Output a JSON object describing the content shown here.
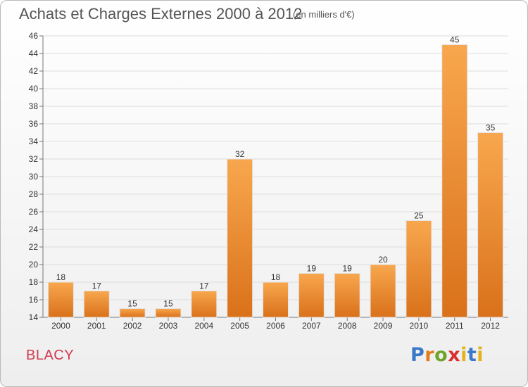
{
  "header": {
    "title": "Achats et Charges Externes 2000 à 2012",
    "subtitle": "(en milliers d'€)"
  },
  "footer": {
    "commune": "BLACY",
    "logo_text": "Proxiti"
  },
  "colors": {
    "bar_light": "#f8a74e",
    "bar_dark": "#d9711a",
    "grid": "#dddddd",
    "commune_text": "#d03a50"
  },
  "chart_data": {
    "type": "bar",
    "title": "Achats et Charges Externes 2000 à 2012",
    "subtitle": "(en milliers d'€)",
    "categories": [
      "2000",
      "2001",
      "2002",
      "2003",
      "2004",
      "2005",
      "2006",
      "2007",
      "2008",
      "2009",
      "2010",
      "2011",
      "2012"
    ],
    "values": [
      18,
      17,
      15,
      15,
      17,
      32,
      18,
      19,
      19,
      20,
      25,
      45,
      35
    ],
    "ylim": [
      14,
      46
    ],
    "yticks": [
      14,
      16,
      18,
      20,
      22,
      24,
      26,
      28,
      30,
      32,
      34,
      36,
      38,
      40,
      42,
      44,
      46
    ],
    "grid": true,
    "xlabel": "",
    "ylabel": ""
  }
}
